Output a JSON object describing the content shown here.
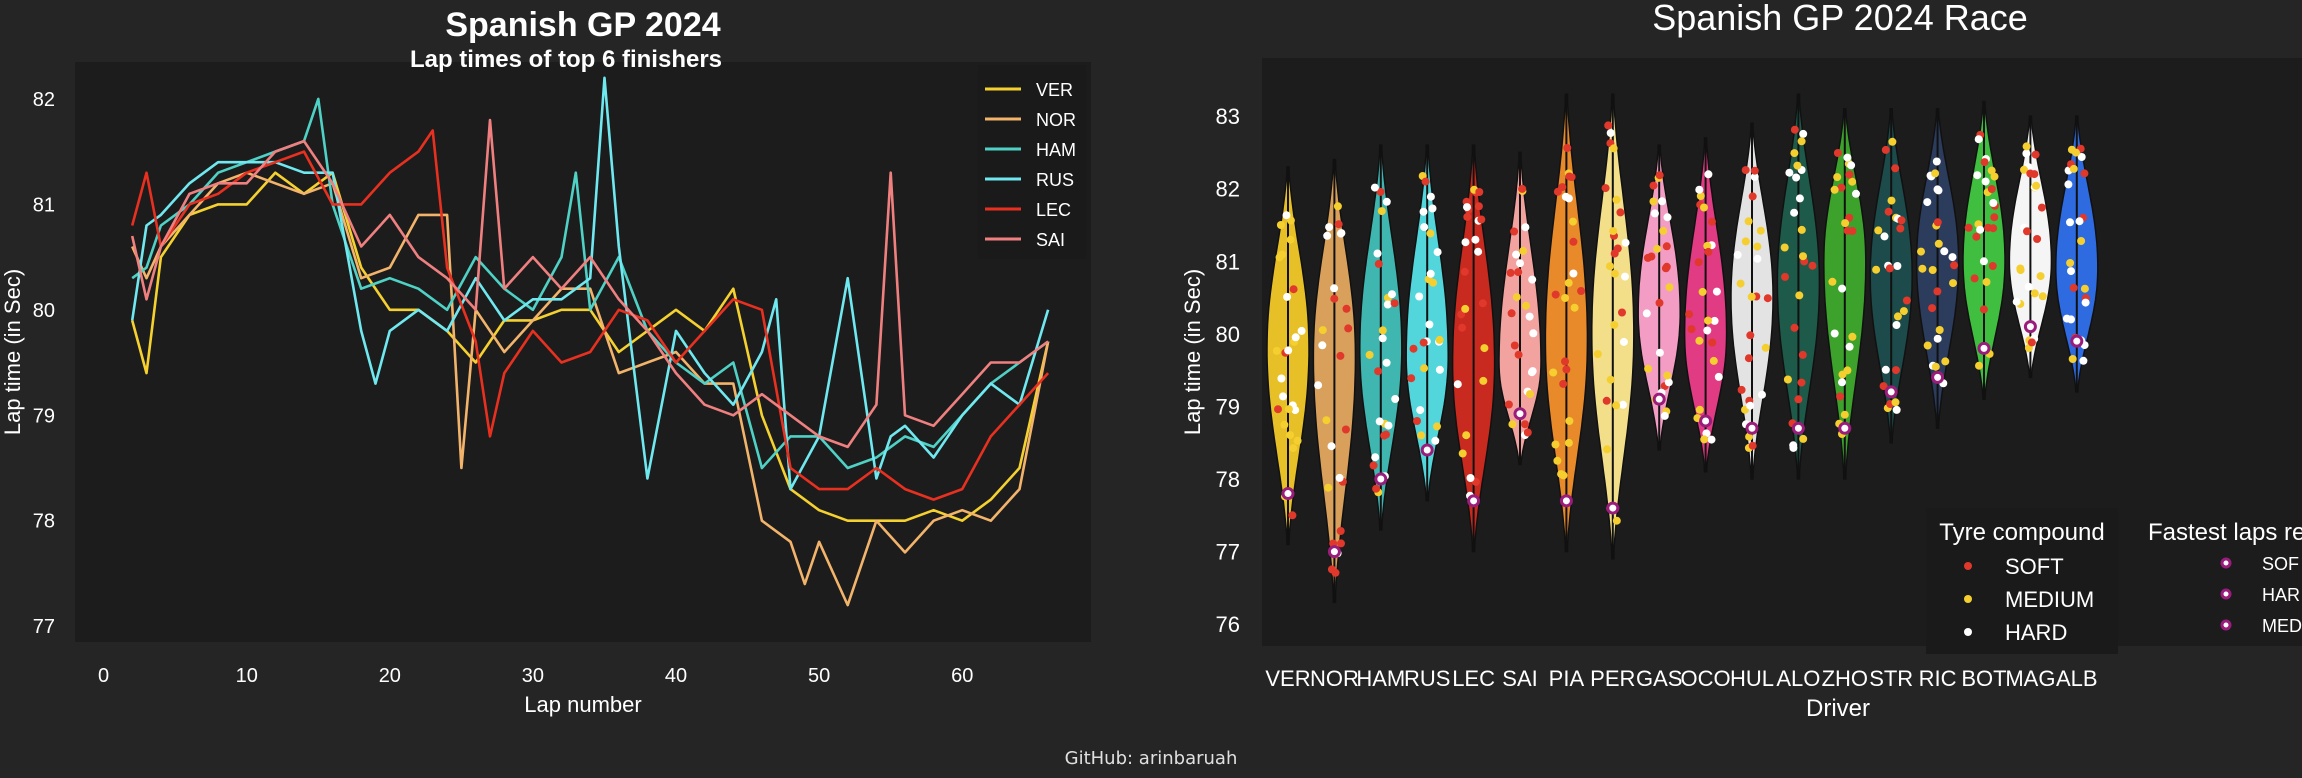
{
  "footer": {
    "credit": "GitHub: arinbaruah"
  },
  "chart_data": [
    {
      "type": "line",
      "title": "Spanish GP 2024",
      "subtitle": "Lap times of top 6 finishers",
      "xlabel": "Lap number",
      "ylabel": "Lap time (in Sec)",
      "xlim": [
        -2,
        69
      ],
      "ylim": [
        76.85,
        82.35
      ],
      "xticks": [
        0,
        10,
        20,
        30,
        40,
        50,
        60
      ],
      "yticks": [
        77,
        78,
        79,
        80,
        81,
        82
      ],
      "grid": false,
      "legend_position": "top-right",
      "series": [
        {
          "name": "VER",
          "color": "#f5d130",
          "x": [
            2,
            3,
            4,
            6,
            8,
            10,
            12,
            14,
            16,
            18,
            20,
            22,
            24,
            26,
            28,
            30,
            32,
            34,
            36,
            38,
            40,
            42,
            44,
            46,
            48,
            50,
            52,
            54,
            56,
            58,
            60,
            62,
            64,
            66
          ],
          "y": [
            79.9,
            79.4,
            80.5,
            80.9,
            81.0,
            81.0,
            81.3,
            81.1,
            81.3,
            80.4,
            80.0,
            80.0,
            79.8,
            79.5,
            79.9,
            79.9,
            80.0,
            80.0,
            79.6,
            79.8,
            80.0,
            79.8,
            80.2,
            79.0,
            78.3,
            78.1,
            78.0,
            78.0,
            78.0,
            78.1,
            78.0,
            78.2,
            78.5,
            79.7
          ]
        },
        {
          "name": "NOR",
          "color": "#f2b36b",
          "x": [
            2,
            3,
            4,
            6,
            8,
            10,
            12,
            14,
            16,
            18,
            20,
            22,
            24,
            25,
            26,
            28,
            30,
            32,
            34,
            36,
            38,
            40,
            42,
            44,
            46,
            48,
            49,
            50,
            51,
            52,
            54,
            56,
            58,
            60,
            62,
            64,
            66
          ],
          "y": [
            80.6,
            80.3,
            80.6,
            80.9,
            81.2,
            81.3,
            81.2,
            81.1,
            81.2,
            80.3,
            80.4,
            80.9,
            80.9,
            78.5,
            80.0,
            79.6,
            79.9,
            80.2,
            80.2,
            79.4,
            79.5,
            79.6,
            79.3,
            79.3,
            78.0,
            77.8,
            77.4,
            77.8,
            77.5,
            77.2,
            78.0,
            77.7,
            78.0,
            78.1,
            78.0,
            78.3,
            79.7
          ]
        },
        {
          "name": "HAM",
          "color": "#4fd1c5",
          "x": [
            2,
            3,
            4,
            6,
            8,
            10,
            12,
            14,
            15,
            16,
            18,
            20,
            22,
            24,
            26,
            28,
            30,
            32,
            33,
            34,
            36,
            38,
            40,
            42,
            44,
            46,
            48,
            50,
            52,
            54,
            56,
            58,
            60,
            62,
            64,
            66
          ],
          "y": [
            80.3,
            80.4,
            80.8,
            81.0,
            81.3,
            81.4,
            81.5,
            81.6,
            82.0,
            81.0,
            80.2,
            80.3,
            80.2,
            80.0,
            80.5,
            80.2,
            80.0,
            80.5,
            81.3,
            80.0,
            80.5,
            79.8,
            79.5,
            79.3,
            79.5,
            78.5,
            78.8,
            78.8,
            78.5,
            78.6,
            78.8,
            78.7,
            79.0,
            79.3,
            79.5,
            79.7
          ]
        },
        {
          "name": "RUS",
          "color": "#6fe8f0",
          "x": [
            2,
            3,
            4,
            6,
            8,
            10,
            12,
            14,
            16,
            18,
            19,
            20,
            22,
            24,
            26,
            28,
            30,
            32,
            34,
            35,
            36,
            38,
            40,
            42,
            44,
            46,
            47,
            48,
            50,
            52,
            54,
            55,
            56,
            58,
            60,
            62,
            64,
            66
          ],
          "y": [
            79.9,
            80.8,
            80.9,
            81.2,
            81.4,
            81.4,
            81.4,
            81.3,
            81.3,
            79.8,
            79.3,
            79.8,
            80.0,
            79.8,
            80.3,
            79.9,
            80.1,
            80.1,
            80.3,
            82.2,
            80.6,
            78.4,
            79.8,
            79.4,
            79.1,
            79.6,
            80.1,
            78.3,
            78.8,
            80.3,
            78.4,
            78.8,
            78.9,
            78.6,
            79.0,
            79.3,
            79.1,
            80.0
          ]
        },
        {
          "name": "LEC",
          "color": "#e83020",
          "x": [
            2,
            3,
            4,
            6,
            8,
            10,
            12,
            14,
            16,
            18,
            20,
            22,
            23,
            24,
            26,
            27,
            28,
            30,
            32,
            34,
            36,
            38,
            40,
            42,
            44,
            46,
            48,
            50,
            52,
            54,
            56,
            58,
            60,
            62,
            64,
            66
          ],
          "y": [
            80.8,
            81.3,
            80.6,
            81.0,
            81.1,
            81.3,
            81.4,
            81.5,
            81.0,
            81.0,
            81.3,
            81.5,
            81.7,
            80.4,
            79.7,
            78.8,
            79.4,
            79.8,
            79.5,
            79.6,
            80.0,
            79.9,
            79.5,
            79.8,
            80.1,
            80.0,
            78.5,
            78.3,
            78.3,
            78.5,
            78.3,
            78.2,
            78.3,
            78.8,
            79.1,
            79.4
          ]
        },
        {
          "name": "SAI",
          "color": "#f08080",
          "x": [
            2,
            3,
            4,
            6,
            8,
            10,
            12,
            14,
            16,
            18,
            20,
            22,
            24,
            26,
            27,
            28,
            30,
            32,
            34,
            36,
            38,
            40,
            42,
            44,
            46,
            48,
            50,
            52,
            54,
            55,
            56,
            58,
            60,
            62,
            64,
            66
          ],
          "y": [
            80.7,
            80.1,
            80.6,
            81.1,
            81.2,
            81.2,
            81.5,
            81.6,
            81.2,
            80.6,
            80.9,
            80.5,
            80.3,
            80.0,
            81.8,
            80.2,
            80.5,
            80.2,
            80.5,
            80.1,
            79.8,
            79.4,
            79.1,
            79.0,
            79.2,
            79.0,
            78.8,
            78.7,
            79.1,
            81.3,
            79.0,
            78.9,
            79.2,
            79.5,
            79.5,
            79.7
          ]
        }
      ]
    },
    {
      "type": "violin",
      "title": "Spanish GP 2024 Race",
      "xlabel": "Driver",
      "ylabel": "Lap time (in Sec)",
      "ylim": [
        75.7,
        83.8
      ],
      "yticks": [
        76,
        77,
        78,
        79,
        80,
        81,
        82,
        83
      ],
      "categories": [
        "VER",
        "NOR",
        "HAM",
        "RUS",
        "LEC",
        "SAI",
        "PIA",
        "PER",
        "GAS",
        "OCO",
        "HUL",
        "ALO",
        "ZHO",
        "STR",
        "RIC",
        "BOT",
        "MAG",
        "ALB"
      ],
      "violin_colors": [
        "#e6c026",
        "#d9a05b",
        "#3fb6b0",
        "#53d6db",
        "#c92a1f",
        "#f2a3a0",
        "#e8892a",
        "#f3de8a",
        "#f39dc4",
        "#e03b83",
        "#e3e3e3",
        "#1e5a4a",
        "#3ca22c",
        "#1d4a4a",
        "#2c3c5c",
        "#3fbe3f",
        "#f5f5f5",
        "#2e6ae0"
      ],
      "median": [
        79.8,
        79.7,
        79.8,
        79.7,
        79.6,
        79.6,
        79.9,
        80.0,
        80.3,
        80.0,
        80.5,
        80.7,
        81.0,
        80.8,
        81.0,
        81.0,
        81.0,
        80.9
      ],
      "range_min": [
        77.1,
        76.3,
        77.3,
        77.7,
        77.0,
        78.2,
        77.0,
        76.9,
        78.4,
        78.1,
        78.0,
        78.0,
        78.0,
        78.5,
        78.7,
        79.1,
        79.4,
        79.2
      ],
      "range_max": [
        82.3,
        82.4,
        82.6,
        82.6,
        82.6,
        82.5,
        83.3,
        83.3,
        82.6,
        82.7,
        82.9,
        83.3,
        83.1,
        83.1,
        83.1,
        83.2,
        83.0,
        83.0
      ],
      "compound_colors": {
        "SOFT": "#e0382b",
        "MEDIUM": "#f5cf2f",
        "HARD": "#ffffff"
      },
      "fastest_marker_color": "#9a1d7c",
      "legend_tyre": {
        "title": "Tyre compound",
        "entries": [
          "SOFT",
          "MEDIUM",
          "HARD"
        ]
      },
      "legend_fastest": {
        "title": "Fastest laps re",
        "entries": [
          "SOF",
          "HAR",
          "MED"
        ]
      }
    }
  ]
}
